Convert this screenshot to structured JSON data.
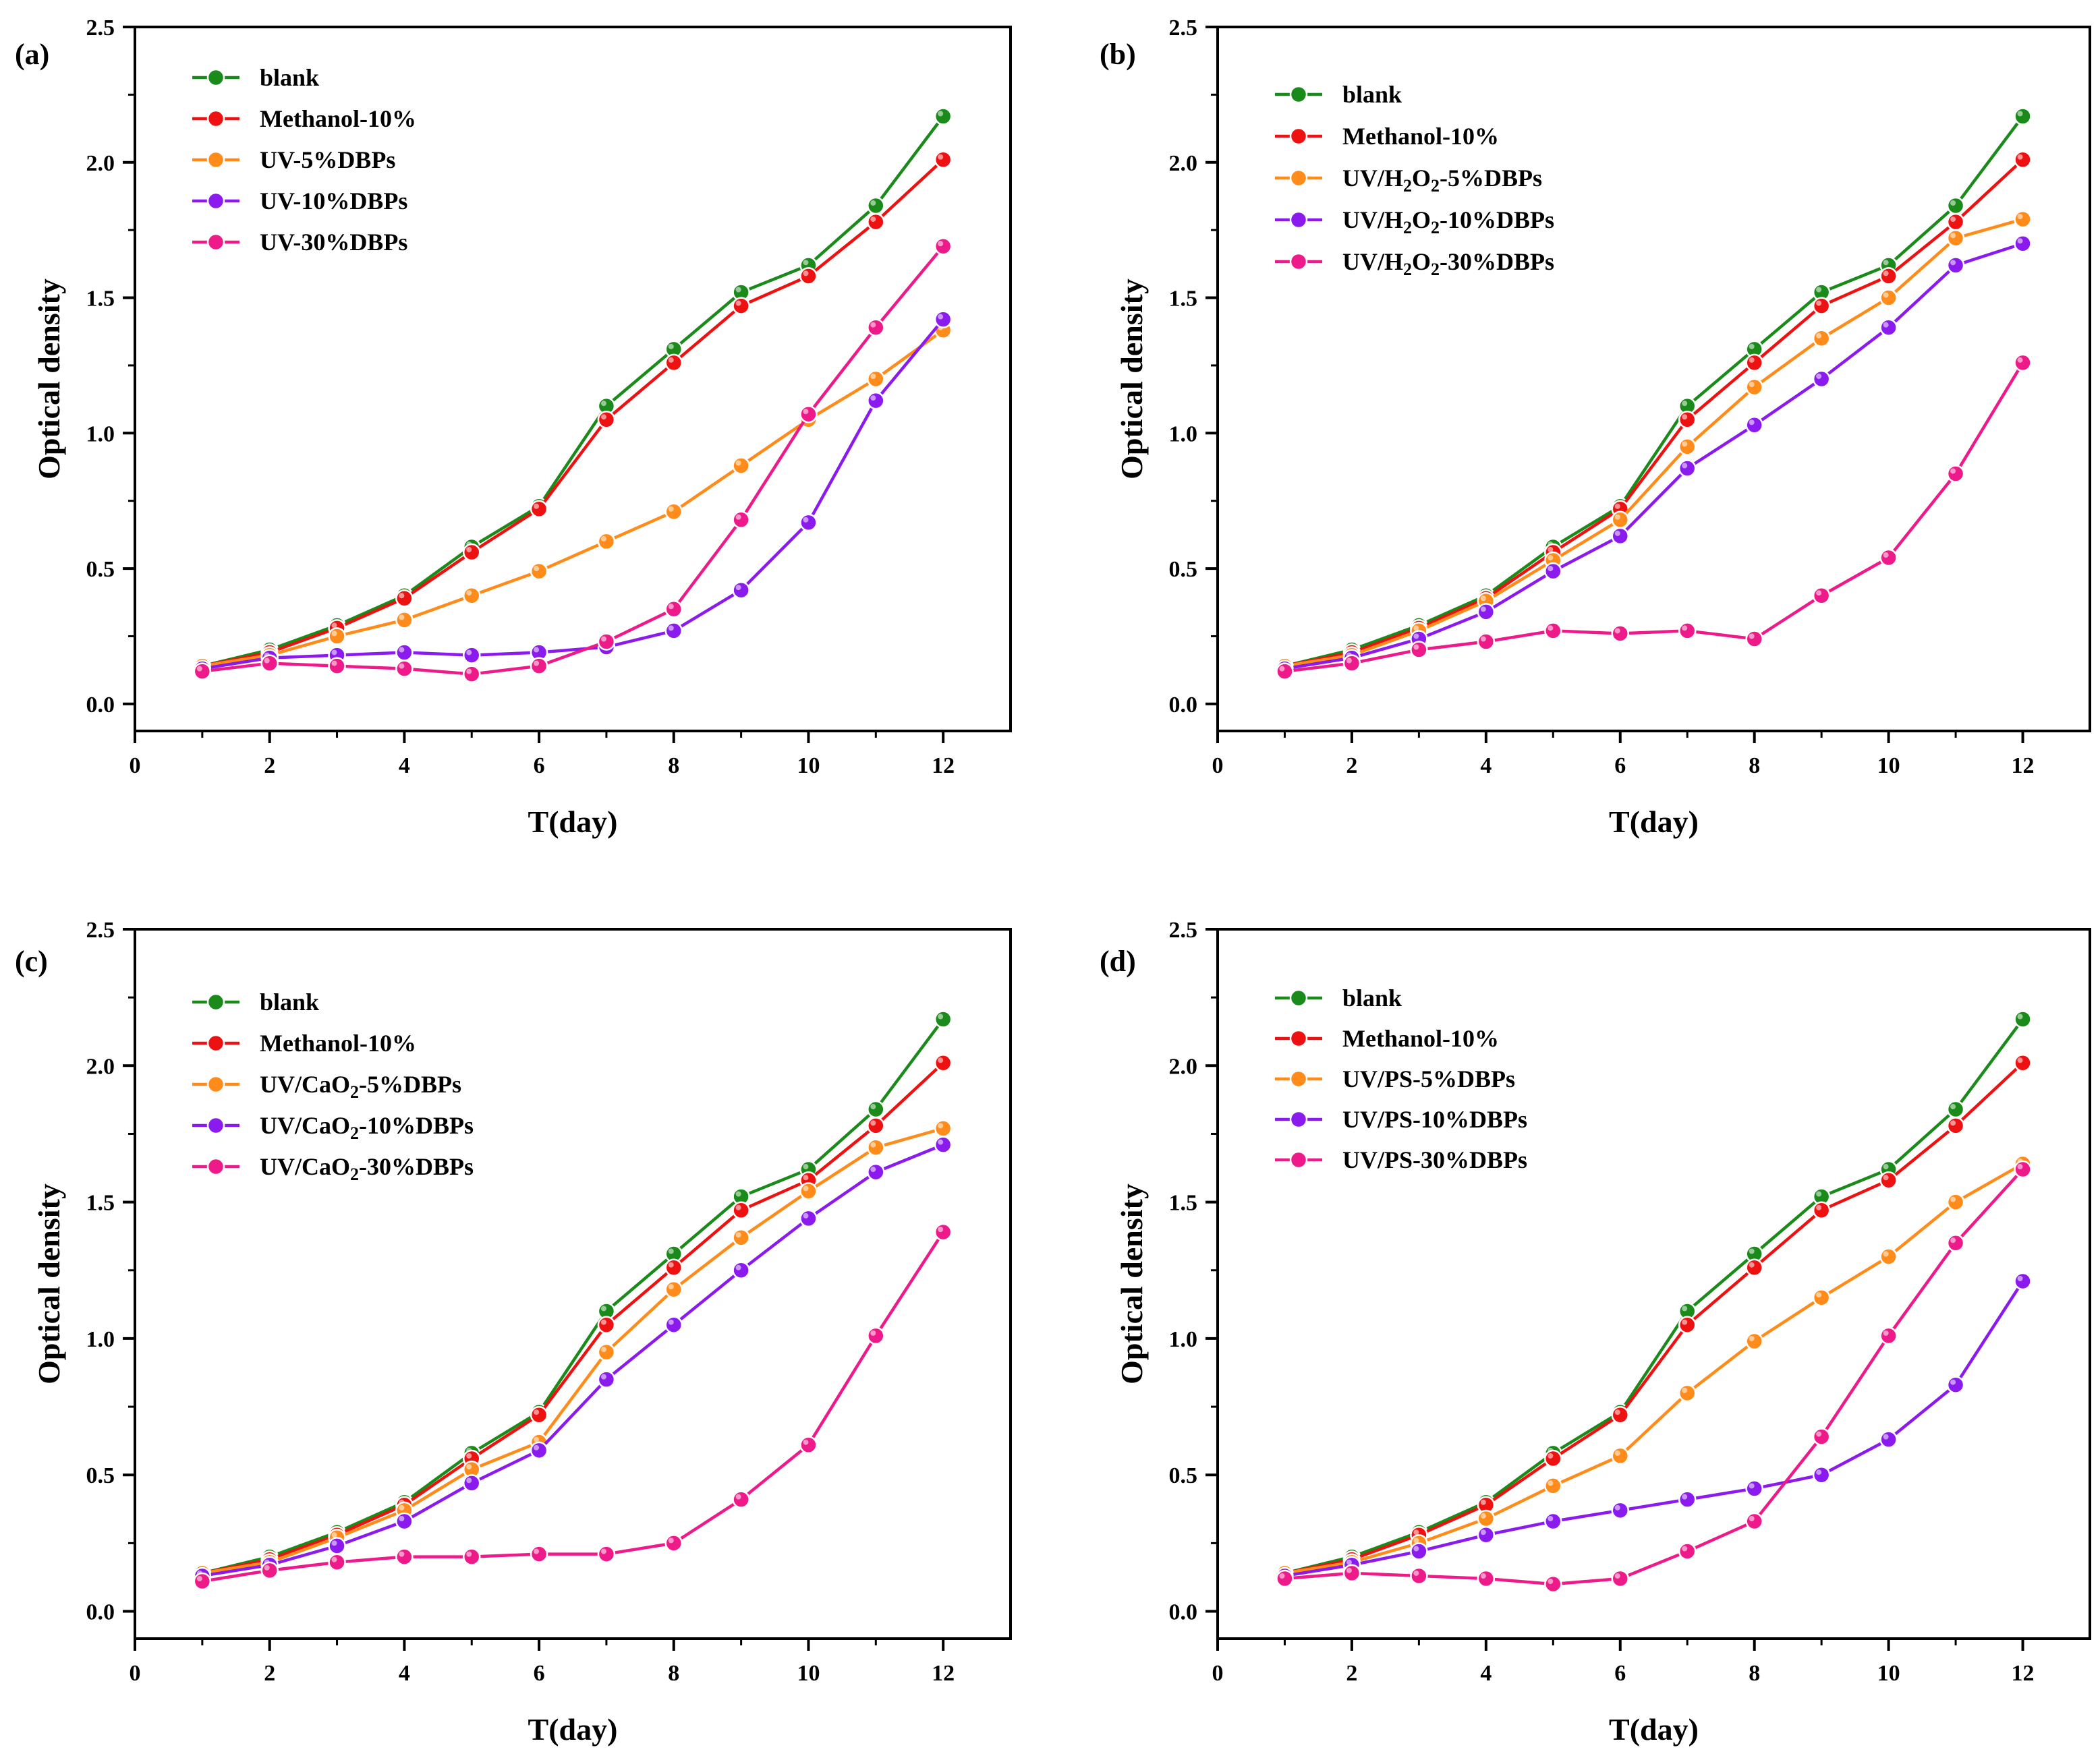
{
  "figure": {
    "palette": {
      "blank": "#1a8a1a",
      "methanol": "#ee1111",
      "s5": "#ff8c1a",
      "s10": "#8a1aee",
      "s30": "#ee1a8a"
    }
  },
  "chart_data": [
    {
      "type": "line",
      "panel_label": "(a)",
      "xlabel": "T(day)",
      "ylabel": "Optical density",
      "xlim": [
        0,
        13
      ],
      "ylim": [
        -0.1,
        2.5
      ],
      "xticks": [
        "0",
        "2",
        "4",
        "6",
        "8",
        "10",
        "12"
      ],
      "yticks": [
        "0.0",
        "0.5",
        "1.0",
        "1.5",
        "2.0",
        "2.5"
      ],
      "x": [
        1,
        2,
        3,
        4,
        5,
        6,
        7,
        8,
        9,
        10,
        11,
        12
      ],
      "legend_position": "top-left",
      "series": [
        {
          "name": "blank",
          "label_parts": [
            {
              "t": "blank"
            }
          ],
          "color": "#1a8a1a",
          "values": [
            0.14,
            0.2,
            0.29,
            0.4,
            0.58,
            0.73,
            1.1,
            1.31,
            1.52,
            1.62,
            1.84,
            2.17
          ]
        },
        {
          "name": "Methanol-10%",
          "label_parts": [
            {
              "t": "Methanol-10%"
            }
          ],
          "color": "#ee1111",
          "values": [
            0.14,
            0.19,
            0.28,
            0.39,
            0.56,
            0.72,
            1.05,
            1.26,
            1.47,
            1.58,
            1.78,
            2.01
          ]
        },
        {
          "name": "UV-5%DBPs",
          "label_parts": [
            {
              "t": "UV-5%DBPs"
            }
          ],
          "color": "#ff8c1a",
          "values": [
            0.14,
            0.18,
            0.25,
            0.31,
            0.4,
            0.49,
            0.6,
            0.71,
            0.88,
            1.05,
            1.2,
            1.38
          ]
        },
        {
          "name": "UV-10%DBPs",
          "label_parts": [
            {
              "t": "UV-10%DBPs"
            }
          ],
          "color": "#8a1aee",
          "values": [
            0.13,
            0.17,
            0.18,
            0.19,
            0.18,
            0.19,
            0.21,
            0.27,
            0.42,
            0.67,
            1.12,
            1.42
          ]
        },
        {
          "name": "UV-30%DBPs",
          "label_parts": [
            {
              "t": "UV-30%DBPs"
            }
          ],
          "color": "#ee1a8a",
          "values": [
            0.12,
            0.15,
            0.14,
            0.13,
            0.11,
            0.14,
            0.23,
            0.35,
            0.68,
            1.07,
            1.39,
            1.69
          ]
        }
      ]
    },
    {
      "type": "line",
      "panel_label": "(b)",
      "xlabel": "T(day)",
      "ylabel": "Optical density",
      "xlim": [
        0,
        13
      ],
      "ylim": [
        -0.1,
        2.5
      ],
      "xticks": [
        "0",
        "2",
        "4",
        "6",
        "8",
        "10",
        "12"
      ],
      "yticks": [
        "0.0",
        "0.5",
        "1.0",
        "1.5",
        "2.0",
        "2.5"
      ],
      "x": [
        1,
        2,
        3,
        4,
        5,
        6,
        7,
        8,
        9,
        10,
        11,
        12
      ],
      "legend_position": "top-left",
      "series": [
        {
          "name": "blank",
          "label_parts": [
            {
              "t": "blank"
            }
          ],
          "color": "#1a8a1a",
          "values": [
            0.14,
            0.2,
            0.29,
            0.4,
            0.58,
            0.73,
            1.1,
            1.31,
            1.52,
            1.62,
            1.84,
            2.17
          ]
        },
        {
          "name": "Methanol-10%",
          "label_parts": [
            {
              "t": "Methanol-10%"
            }
          ],
          "color": "#ee1111",
          "values": [
            0.14,
            0.19,
            0.28,
            0.39,
            0.56,
            0.72,
            1.05,
            1.26,
            1.47,
            1.58,
            1.78,
            2.01
          ]
        },
        {
          "name": "UV/H2O2-5%DBPs",
          "label_parts": [
            {
              "t": "UV/H"
            },
            {
              "t": "2",
              "sub": true
            },
            {
              "t": "O"
            },
            {
              "t": "2",
              "sub": true
            },
            {
              "t": "-5%DBPs"
            }
          ],
          "color": "#ff8c1a",
          "values": [
            0.14,
            0.18,
            0.27,
            0.38,
            0.53,
            0.68,
            0.95,
            1.17,
            1.35,
            1.5,
            1.72,
            1.79
          ]
        },
        {
          "name": "UV/H2O2-10%DBPs",
          "label_parts": [
            {
              "t": "UV/H"
            },
            {
              "t": "2",
              "sub": true
            },
            {
              "t": "O"
            },
            {
              "t": "2",
              "sub": true
            },
            {
              "t": "-10%DBPs"
            }
          ],
          "color": "#8a1aee",
          "values": [
            0.13,
            0.17,
            0.24,
            0.34,
            0.49,
            0.62,
            0.87,
            1.03,
            1.2,
            1.39,
            1.62,
            1.7
          ]
        },
        {
          "name": "UV/H2O2-30%DBPs",
          "label_parts": [
            {
              "t": "UV/H"
            },
            {
              "t": "2",
              "sub": true
            },
            {
              "t": "O"
            },
            {
              "t": "2",
              "sub": true
            },
            {
              "t": "-30%DBPs"
            }
          ],
          "color": "#ee1a8a",
          "values": [
            0.12,
            0.15,
            0.2,
            0.23,
            0.27,
            0.26,
            0.27,
            0.24,
            0.4,
            0.54,
            0.85,
            1.26
          ]
        }
      ]
    },
    {
      "type": "line",
      "panel_label": "(c)",
      "xlabel": "T(day)",
      "ylabel": "Optical density",
      "xlim": [
        0,
        13
      ],
      "ylim": [
        -0.1,
        2.5
      ],
      "xticks": [
        "0",
        "2",
        "4",
        "6",
        "8",
        "10",
        "12"
      ],
      "yticks": [
        "0.0",
        "0.5",
        "1.0",
        "1.5",
        "2.0",
        "2.5"
      ],
      "x": [
        1,
        2,
        3,
        4,
        5,
        6,
        7,
        8,
        9,
        10,
        11,
        12
      ],
      "legend_position": "top-left",
      "series": [
        {
          "name": "blank",
          "label_parts": [
            {
              "t": "blank"
            }
          ],
          "color": "#1a8a1a",
          "values": [
            0.14,
            0.2,
            0.29,
            0.4,
            0.58,
            0.73,
            1.1,
            1.31,
            1.52,
            1.62,
            1.84,
            2.17
          ]
        },
        {
          "name": "Methanol-10%",
          "label_parts": [
            {
              "t": "Methanol-10%"
            }
          ],
          "color": "#ee1111",
          "values": [
            0.14,
            0.19,
            0.28,
            0.39,
            0.56,
            0.72,
            1.05,
            1.26,
            1.47,
            1.58,
            1.78,
            2.01
          ]
        },
        {
          "name": "UV/CaO2-5%DBPs",
          "label_parts": [
            {
              "t": "UV/CaO"
            },
            {
              "t": "2",
              "sub": true
            },
            {
              "t": "-5%DBPs"
            }
          ],
          "color": "#ff8c1a",
          "values": [
            0.14,
            0.18,
            0.27,
            0.37,
            0.52,
            0.62,
            0.95,
            1.18,
            1.37,
            1.54,
            1.7,
            1.77
          ]
        },
        {
          "name": "UV/CaO2-10%DBPs",
          "label_parts": [
            {
              "t": "UV/CaO"
            },
            {
              "t": "2",
              "sub": true
            },
            {
              "t": "-10%DBPs"
            }
          ],
          "color": "#8a1aee",
          "values": [
            0.13,
            0.17,
            0.24,
            0.33,
            0.47,
            0.59,
            0.85,
            1.05,
            1.25,
            1.44,
            1.61,
            1.71
          ]
        },
        {
          "name": "UV/CaO2-30%DBPs",
          "label_parts": [
            {
              "t": "UV/CaO"
            },
            {
              "t": "2",
              "sub": true
            },
            {
              "t": "-30%DBPs"
            }
          ],
          "color": "#ee1a8a",
          "values": [
            0.11,
            0.15,
            0.18,
            0.2,
            0.2,
            0.21,
            0.21,
            0.25,
            0.41,
            0.61,
            1.01,
            1.39
          ]
        }
      ]
    },
    {
      "type": "line",
      "panel_label": "(d)",
      "xlabel": "T(day)",
      "ylabel": "Optical density",
      "xlim": [
        0,
        13
      ],
      "ylim": [
        -0.1,
        2.5
      ],
      "xticks": [
        "0",
        "2",
        "4",
        "6",
        "8",
        "10",
        "12"
      ],
      "yticks": [
        "0.0",
        "0.5",
        "1.0",
        "1.5",
        "2.0",
        "2.5"
      ],
      "x": [
        1,
        2,
        3,
        4,
        5,
        6,
        7,
        8,
        9,
        10,
        11,
        12
      ],
      "legend_position": "top-left",
      "series": [
        {
          "name": "blank",
          "label_parts": [
            {
              "t": "blank"
            }
          ],
          "color": "#1a8a1a",
          "values": [
            0.14,
            0.2,
            0.29,
            0.4,
            0.58,
            0.73,
            1.1,
            1.31,
            1.52,
            1.62,
            1.84,
            2.17
          ]
        },
        {
          "name": "Methanol-10%",
          "label_parts": [
            {
              "t": "Methanol-10%"
            }
          ],
          "color": "#ee1111",
          "values": [
            0.14,
            0.19,
            0.28,
            0.39,
            0.56,
            0.72,
            1.05,
            1.26,
            1.47,
            1.58,
            1.78,
            2.01
          ]
        },
        {
          "name": "UV/PS-5%DBPs",
          "label_parts": [
            {
              "t": "UV/PS-5%DBPs"
            }
          ],
          "color": "#ff8c1a",
          "values": [
            0.14,
            0.18,
            0.25,
            0.34,
            0.46,
            0.57,
            0.8,
            0.99,
            1.15,
            1.3,
            1.5,
            1.64
          ]
        },
        {
          "name": "UV/PS-10%DBPs",
          "label_parts": [
            {
              "t": "UV/PS-10%DBPs"
            }
          ],
          "color": "#8a1aee",
          "values": [
            0.13,
            0.17,
            0.22,
            0.28,
            0.33,
            0.37,
            0.41,
            0.45,
            0.5,
            0.63,
            0.83,
            1.21
          ]
        },
        {
          "name": "UV/PS-30%DBPs",
          "label_parts": [
            {
              "t": "UV/PS-30%DBPs"
            }
          ],
          "color": "#ee1a8a",
          "values": [
            0.12,
            0.14,
            0.13,
            0.12,
            0.1,
            0.12,
            0.22,
            0.33,
            0.64,
            1.01,
            1.35,
            1.62
          ]
        }
      ]
    }
  ]
}
